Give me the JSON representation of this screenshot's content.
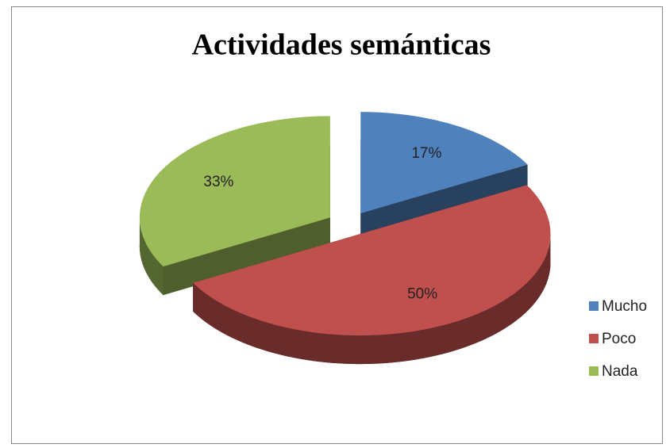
{
  "chart_data": {
    "type": "pie",
    "title": "Actividades semánticas",
    "categories": [
      "Mucho",
      "Poco",
      "Nada"
    ],
    "values": [
      17,
      50,
      33
    ],
    "value_labels": [
      "17%",
      "50%",
      "33%"
    ],
    "colors": [
      "#4f81bd",
      "#c0504d",
      "#9bbb59"
    ],
    "legend": "right"
  }
}
